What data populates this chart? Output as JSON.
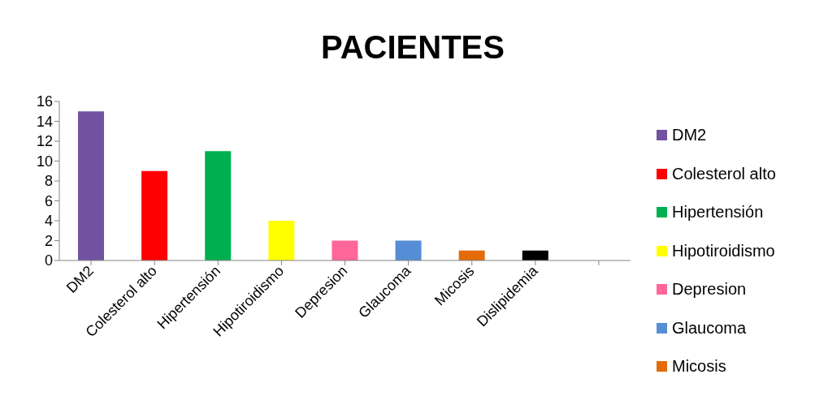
{
  "chart_data": {
    "type": "bar",
    "title": "PACIENTES",
    "categories": [
      "DM2",
      "Colesterol alto",
      "Hipertensión",
      "Hipotiroidismo",
      "Depresion",
      "Glaucoma",
      "Micosis",
      "Dislipidemia",
      null
    ],
    "series": [
      {
        "name": "DM2",
        "color": "#7152a0",
        "values": [
          15,
          null,
          null,
          null,
          null,
          null,
          null,
          null,
          null
        ]
      },
      {
        "name": "Colesterol alto",
        "color": "#ff0000",
        "values": [
          null,
          9,
          null,
          null,
          null,
          null,
          null,
          null,
          null
        ]
      },
      {
        "name": "Hipertensión",
        "color": "#00b050",
        "values": [
          null,
          null,
          11,
          null,
          null,
          null,
          null,
          null,
          null
        ]
      },
      {
        "name": "Hipotiroidismo",
        "color": "#ffff00",
        "values": [
          null,
          null,
          null,
          4,
          null,
          null,
          null,
          null,
          null
        ]
      },
      {
        "name": "Depresion",
        "color": "#ff6699",
        "values": [
          null,
          null,
          null,
          null,
          2,
          null,
          null,
          null,
          null
        ]
      },
      {
        "name": "Glaucoma",
        "color": "#558ed5",
        "values": [
          null,
          null,
          null,
          null,
          null,
          2,
          null,
          null,
          null
        ]
      },
      {
        "name": "Micosis",
        "color": "#e36c09",
        "values": [
          null,
          null,
          null,
          null,
          null,
          null,
          1,
          null,
          null
        ]
      },
      {
        "color": "#000000",
        "values": [
          null,
          null,
          null,
          null,
          null,
          null,
          null,
          1,
          null
        ]
      }
    ],
    "ylim": [
      0,
      16
    ],
    "yticks": [
      0,
      2,
      4,
      6,
      8,
      10,
      12,
      14,
      16
    ],
    "legend": "right"
  }
}
